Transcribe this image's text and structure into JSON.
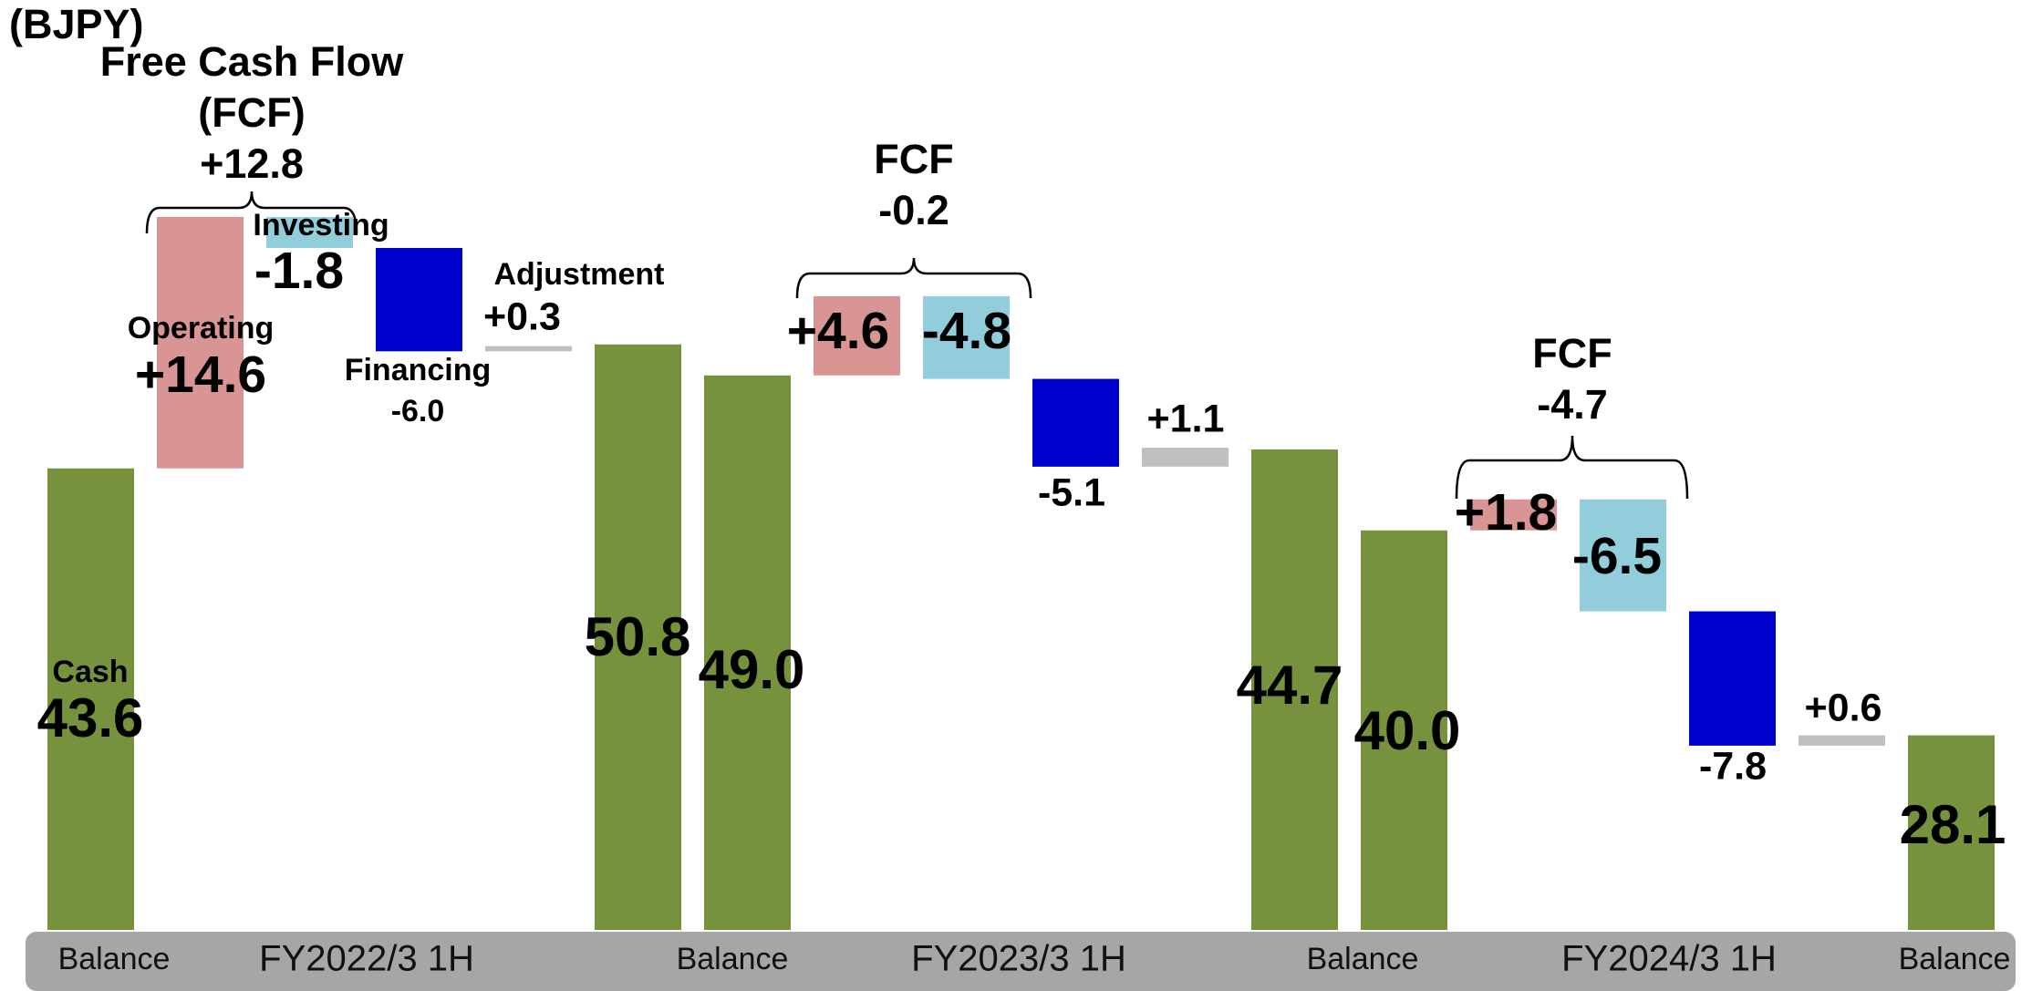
{
  "chart_data": {
    "type": "waterfall",
    "unit": "(BJPY)",
    "ylim": [
      16.8,
      70.8
    ],
    "series": [
      {
        "name": "Cash",
        "color": "#76923c",
        "values": [
          43.6,
          null,
          null,
          null,
          null,
          50.8,
          49.0,
          null,
          null,
          null,
          null,
          44.7,
          40.0,
          null,
          null,
          null,
          null,
          28.1
        ],
        "value_labels": [
          "43.6",
          null,
          null,
          null,
          null,
          "50.8",
          "49.0",
          null,
          null,
          null,
          null,
          "44.7",
          "40.0",
          null,
          null,
          null,
          null,
          "28.1"
        ]
      },
      {
        "name": "Operating",
        "color": "#d99594",
        "values": [
          null,
          14.6,
          null,
          null,
          null,
          null,
          null,
          4.6,
          null,
          null,
          null,
          null,
          null,
          1.8,
          null,
          null,
          null,
          null
        ],
        "value_labels": [
          null,
          "+14.6",
          null,
          null,
          null,
          null,
          null,
          "+4.6",
          null,
          null,
          null,
          null,
          null,
          "+1.8",
          null,
          null,
          null,
          null
        ]
      },
      {
        "name": "Investing",
        "color": "#92cddc",
        "values": [
          null,
          null,
          -1.8,
          null,
          null,
          null,
          null,
          null,
          -4.8,
          null,
          null,
          null,
          null,
          null,
          -6.5,
          null,
          null,
          null
        ],
        "value_labels": [
          null,
          null,
          "-1.8",
          null,
          null,
          null,
          null,
          null,
          "-4.8",
          null,
          null,
          null,
          null,
          null,
          "-6.5",
          null,
          null,
          null
        ]
      },
      {
        "name": "Financing",
        "color": "#0000cc",
        "values": [
          null,
          null,
          null,
          -6.0,
          null,
          null,
          null,
          null,
          null,
          -5.1,
          null,
          null,
          null,
          null,
          null,
          -7.8,
          null,
          null
        ],
        "value_labels": [
          null,
          null,
          null,
          "-6.0",
          null,
          null,
          null,
          null,
          null,
          "-5.1",
          null,
          null,
          null,
          null,
          null,
          "-7.8",
          null,
          null
        ]
      },
      {
        "name": "Adjustment",
        "color": "#c0c0c0",
        "values": [
          null,
          null,
          null,
          null,
          0.3,
          null,
          null,
          null,
          null,
          null,
          1.1,
          null,
          null,
          null,
          null,
          null,
          0.6,
          null
        ],
        "value_labels": [
          null,
          null,
          null,
          null,
          "+0.3",
          null,
          null,
          null,
          null,
          null,
          "+1.1",
          null,
          null,
          null,
          null,
          null,
          "+0.6",
          null
        ]
      }
    ],
    "x_labels": [
      "Balance",
      "FY2022/3 1H",
      "Balance",
      "FY2023/3 1H",
      "Balance",
      "FY2024/3 1H",
      "Balance"
    ],
    "annotations": [
      {
        "text": "Free Cash Flow (FCF)",
        "value": 12.8,
        "value_label": "+12.8"
      },
      {
        "text": "FCF",
        "value": -0.2,
        "value_label": "-0.2"
      },
      {
        "text": "FCF",
        "value": -4.7,
        "value_label": "-4.7"
      }
    ]
  }
}
